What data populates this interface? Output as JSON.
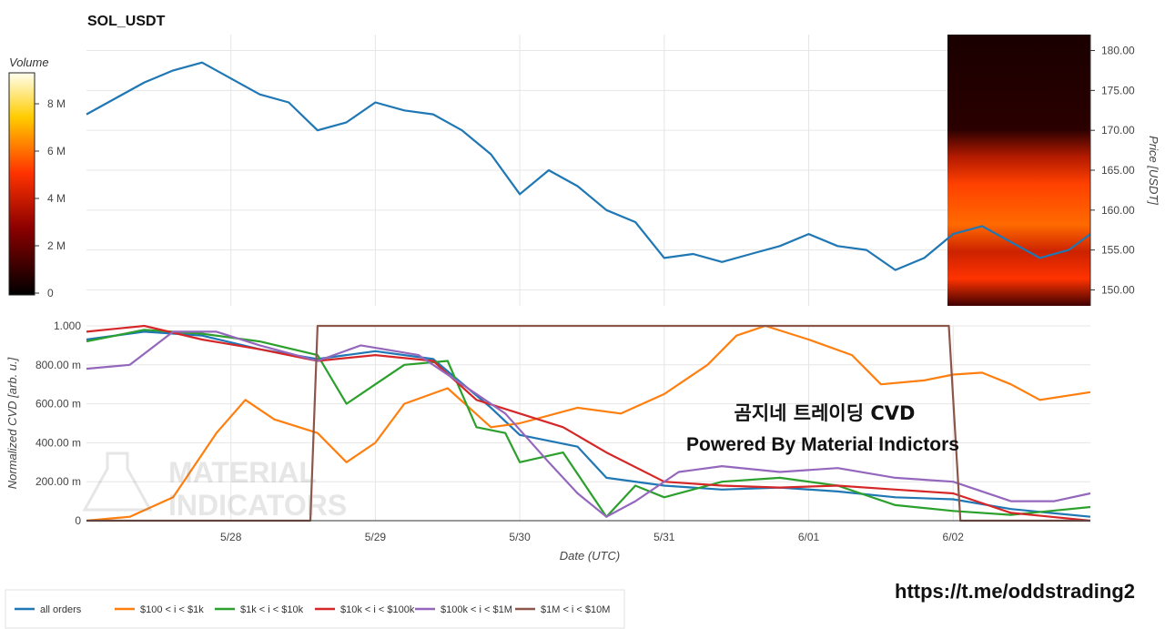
{
  "title": "SOL_USDT",
  "colors": {
    "all_orders": "#1f77b4",
    "s100_1k": "#ff7f0e",
    "s1k_10k": "#2ca02c",
    "s10k_100k": "#d62728",
    "s100k_1m": "#9467bd",
    "s1m_10m": "#8c564b",
    "grid": "#e6e6e6"
  },
  "overlay": {
    "korean_title": "곰지네 트레이딩 CVD",
    "powered_by": "Powered By Material Indictors",
    "url": "https://t.me/oddstrading2",
    "watermark_line1": "MATERIAL",
    "watermark_line2": "INDICATORS"
  },
  "chart_data": [
    {
      "type": "line",
      "title": "SOL_USDT",
      "ylabel": "Price [USDT]",
      "ylim": [
        148,
        182
      ],
      "yticks": [
        "150.00",
        "155.00",
        "160.00",
        "165.00",
        "170.00",
        "175.00",
        "180.00"
      ],
      "xticks": [
        "5/28",
        "5/29",
        "5/30",
        "5/31",
        "6/01",
        "6/02"
      ],
      "xlim": [
        -1.0,
        5.95
      ],
      "grid": true,
      "series": [
        {
          "x": [
            -1.0,
            -0.8,
            -0.6,
            -0.4,
            -0.2,
            0.0,
            0.2,
            0.4,
            0.6,
            0.8,
            1.0,
            1.2,
            1.4,
            1.6,
            1.8,
            2.0,
            2.2,
            2.4,
            2.6,
            2.8,
            3.0,
            3.2,
            3.4,
            3.6,
            3.8,
            4.0,
            4.2,
            4.4,
            4.6,
            4.8,
            5.0,
            5.2,
            5.4,
            5.6,
            5.8,
            5.95
          ],
          "y": [
            172.0,
            174.0,
            176.0,
            177.5,
            178.5,
            176.5,
            174.5,
            173.5,
            170.0,
            171.0,
            173.5,
            172.5,
            172.0,
            170.0,
            167.0,
            162.0,
            165.0,
            163.0,
            160.0,
            158.5,
            154.0,
            154.5,
            153.5,
            154.5,
            155.5,
            157.0,
            155.5,
            155.0,
            152.5,
            154.0,
            157.0,
            158.0,
            156.0,
            154.0,
            155.0,
            157.0
          ]
        }
      ],
      "volume_colorbar": {
        "label": "Volume",
        "ticks": [
          "0",
          "2 M",
          "4 M",
          "6 M",
          "8 M"
        ]
      }
    },
    {
      "type": "line",
      "xlabel": "Date (UTC)",
      "ylabel": "Normalized CVD [arb. u.]",
      "ylim": [
        0,
        1.0
      ],
      "yticks": [
        "0",
        "200.00 m",
        "400.00 m",
        "600.00 m",
        "800.00 m",
        "1.000"
      ],
      "xticks": [
        "5/28",
        "5/29",
        "5/30",
        "5/31",
        "6/01",
        "6/02"
      ],
      "xlim": [
        -1.0,
        5.95
      ],
      "grid": true,
      "legend_position": "bottom-left",
      "series": [
        {
          "name": "all orders",
          "color_key": "all_orders",
          "x": [
            -1.0,
            -0.6,
            -0.2,
            0.2,
            0.6,
            1.0,
            1.4,
            1.8,
            2.0,
            2.4,
            2.6,
            3.0,
            3.4,
            3.8,
            4.2,
            4.6,
            5.0,
            5.4,
            5.95
          ],
          "y": [
            0.93,
            0.97,
            0.95,
            0.88,
            0.83,
            0.87,
            0.83,
            0.58,
            0.44,
            0.38,
            0.22,
            0.18,
            0.16,
            0.17,
            0.15,
            0.12,
            0.11,
            0.06,
            0.02
          ]
        },
        {
          "name": "$100 < i < $1k",
          "color_key": "s100_1k",
          "x": [
            -1.0,
            -0.7,
            -0.4,
            -0.1,
            0.1,
            0.3,
            0.6,
            0.8,
            1.0,
            1.2,
            1.5,
            1.8,
            2.0,
            2.4,
            2.7,
            3.0,
            3.3,
            3.5,
            3.7,
            4.0,
            4.3,
            4.5,
            4.8,
            5.0,
            5.2,
            5.4,
            5.6,
            5.95
          ],
          "y": [
            0.0,
            0.02,
            0.12,
            0.45,
            0.62,
            0.52,
            0.45,
            0.3,
            0.4,
            0.6,
            0.68,
            0.48,
            0.5,
            0.58,
            0.55,
            0.65,
            0.8,
            0.95,
            1.0,
            0.93,
            0.85,
            0.7,
            0.72,
            0.75,
            0.76,
            0.7,
            0.62,
            0.66
          ]
        },
        {
          "name": "$1k < i < $10k",
          "color_key": "s1k_10k",
          "x": [
            -1.0,
            -0.6,
            -0.2,
            0.2,
            0.6,
            0.8,
            1.0,
            1.2,
            1.5,
            1.7,
            1.9,
            2.0,
            2.3,
            2.6,
            2.8,
            3.0,
            3.4,
            3.8,
            4.2,
            4.6,
            5.0,
            5.4,
            5.95
          ],
          "y": [
            0.92,
            0.98,
            0.96,
            0.92,
            0.85,
            0.6,
            0.7,
            0.8,
            0.82,
            0.48,
            0.45,
            0.3,
            0.35,
            0.02,
            0.18,
            0.12,
            0.2,
            0.22,
            0.18,
            0.08,
            0.05,
            0.03,
            0.07
          ]
        },
        {
          "name": "$10k < i < $100k",
          "color_key": "s10k_100k",
          "x": [
            -1.0,
            -0.6,
            -0.2,
            0.2,
            0.6,
            1.0,
            1.4,
            1.7,
            2.0,
            2.3,
            2.6,
            3.0,
            3.4,
            3.8,
            4.2,
            4.6,
            5.0,
            5.4,
            5.95
          ],
          "y": [
            0.97,
            1.0,
            0.93,
            0.88,
            0.82,
            0.85,
            0.82,
            0.62,
            0.55,
            0.48,
            0.35,
            0.2,
            0.18,
            0.17,
            0.18,
            0.16,
            0.14,
            0.04,
            0.0
          ]
        },
        {
          "name": "$100k < i < $1M",
          "color_key": "s100k_1m",
          "x": [
            -1.0,
            -0.7,
            -0.4,
            -0.1,
            0.2,
            0.6,
            0.9,
            1.3,
            1.6,
            1.9,
            2.2,
            2.4,
            2.6,
            2.8,
            3.1,
            3.4,
            3.8,
            4.2,
            4.6,
            5.0,
            5.4,
            5.7,
            5.95
          ],
          "y": [
            0.78,
            0.8,
            0.97,
            0.97,
            0.9,
            0.82,
            0.9,
            0.85,
            0.7,
            0.55,
            0.3,
            0.14,
            0.02,
            0.1,
            0.25,
            0.28,
            0.25,
            0.27,
            0.22,
            0.2,
            0.1,
            0.1,
            0.14
          ]
        },
        {
          "name": "$1M < i < $10M",
          "color_key": "s1m_10m",
          "x": [
            -1.0,
            0.55,
            0.6,
            4.97,
            5.05,
            5.95
          ],
          "y": [
            0.0,
            0.0,
            1.0,
            1.0,
            0.0,
            0.0
          ]
        }
      ]
    }
  ]
}
